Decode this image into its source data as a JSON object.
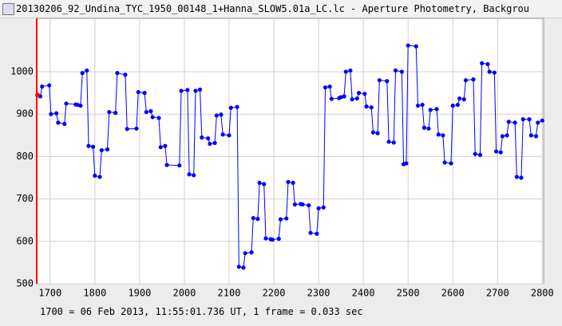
{
  "window": {
    "title": "20130206_92_Undina_TYC_1950_00148_1+Hanna_SLOW5.01a_LC.lc - Aperture Photometry, Backgrou"
  },
  "footer": "1700 = 06 Feb 2013, 11:55:01.736 UT, 1 frame = 0.033 sec",
  "chart_data": {
    "type": "line",
    "color": "#0000ff",
    "marker_color": "#ff0000",
    "marker_x": 1670,
    "grid": true,
    "xlim": [
      1670,
      2803
    ],
    "ylim": [
      500,
      1126
    ],
    "xticks": [
      1700,
      1800,
      1900,
      2000,
      2100,
      2200,
      2300,
      2400,
      2500,
      2600,
      2700,
      2800
    ],
    "yticks": [
      500,
      600,
      700,
      800,
      900,
      1000
    ],
    "x": [
      1672,
      1678,
      1682,
      1698,
      1702,
      1714,
      1718,
      1732,
      1736,
      1757,
      1761,
      1768,
      1772,
      1782,
      1786,
      1796,
      1800,
      1811,
      1815,
      1828,
      1832,
      1846,
      1850,
      1868,
      1872,
      1893,
      1897,
      1911,
      1915,
      1925,
      1929,
      1943,
      1947,
      1957,
      1961,
      1989,
      1993,
      2007,
      2011,
      2021,
      2025,
      2035,
      2039,
      2053,
      2057,
      2068,
      2072,
      2082,
      2086,
      2100,
      2104,
      2118,
      2122,
      2132,
      2136,
      2150,
      2154,
      2164,
      2168,
      2178,
      2182,
      2193,
      2197,
      2211,
      2215,
      2228,
      2232,
      2243,
      2247,
      2260,
      2264,
      2278,
      2282,
      2296,
      2300,
      2311,
      2315,
      2325,
      2329,
      2346,
      2350,
      2357,
      2361,
      2371,
      2375,
      2386,
      2390,
      2403,
      2407,
      2418,
      2422,
      2432,
      2436,
      2453,
      2457,
      2468,
      2472,
      2486,
      2490,
      2496,
      2500,
      2518,
      2522,
      2532,
      2536,
      2546,
      2550,
      2564,
      2568,
      2578,
      2582,
      2596,
      2600,
      2611,
      2615,
      2625,
      2629,
      2646,
      2650,
      2661,
      2665,
      2678,
      2682,
      2693,
      2697,
      2707,
      2711,
      2721,
      2725,
      2739,
      2743,
      2753,
      2757,
      2771,
      2775,
      2786,
      2790,
      2800
    ],
    "values": [
      945,
      942,
      965,
      968,
      900,
      902,
      880,
      877,
      925,
      923,
      922,
      920,
      997,
      1003,
      825,
      823,
      755,
      752,
      815,
      817,
      905,
      903,
      997,
      993,
      865,
      866,
      952,
      950,
      905,
      907,
      893,
      891,
      822,
      825,
      780,
      779,
      955,
      957,
      758,
      756,
      955,
      958,
      845,
      843,
      830,
      832,
      897,
      899,
      852,
      850,
      915,
      917,
      540,
      538,
      572,
      574,
      655,
      653,
      738,
      735,
      607,
      605,
      604,
      606,
      652,
      654,
      740,
      738,
      687,
      688,
      687,
      685,
      620,
      618,
      678,
      680,
      963,
      965,
      936,
      938,
      940,
      942,
      1000,
      1003,
      935,
      937,
      950,
      948,
      918,
      916,
      857,
      855,
      980,
      978,
      835,
      833,
      1003,
      1000,
      782,
      784,
      1062,
      1060,
      920,
      922,
      868,
      866,
      910,
      912,
      852,
      850,
      786,
      784,
      920,
      922,
      937,
      935,
      980,
      982,
      806,
      804,
      1020,
      1018,
      1000,
      998,
      812,
      810,
      848,
      850,
      882,
      880,
      752,
      750,
      888,
      888,
      850,
      848,
      880,
      885
    ]
  }
}
